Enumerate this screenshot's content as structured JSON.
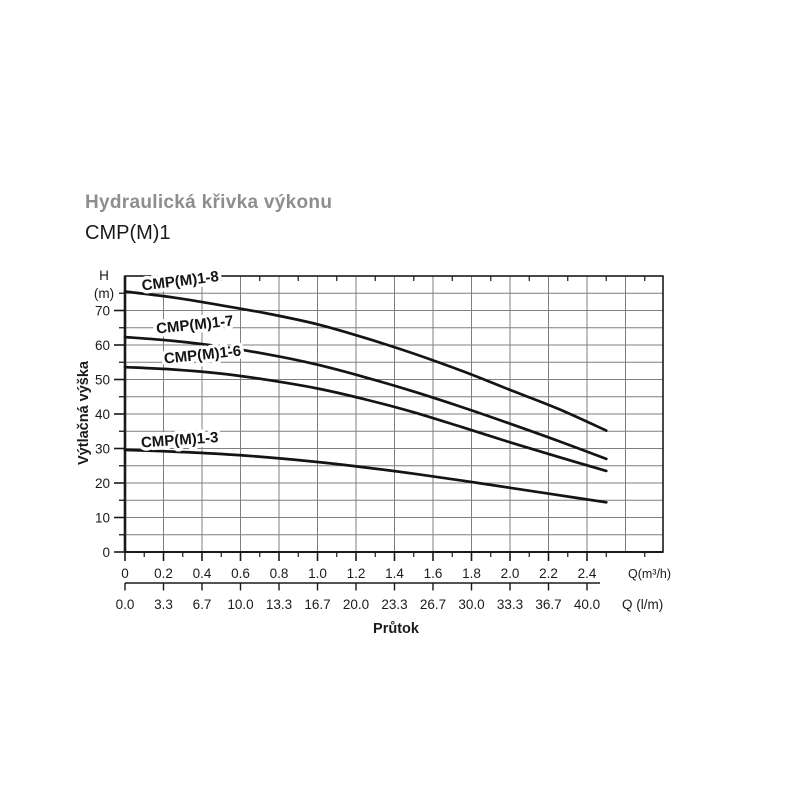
{
  "header": {
    "title": "Hydraulická křivka výkonu",
    "model": "CMP(M)1"
  },
  "chart_data": {
    "type": "line",
    "title": "Hydraulická křivka výkonu",
    "subtitle": "CMP(M)1",
    "xlabel": "Průtok",
    "ylabel": "Výtlačná výška",
    "y_unit_lines": [
      "H",
      "(m)"
    ],
    "x_unit_primary": "Q(m³/h)",
    "x_unit_secondary": "Q (l/m)",
    "xlim": [
      0,
      2.8
    ],
    "ylim": [
      0,
      80
    ],
    "grid": true,
    "x_grid_step": 0.2,
    "y_grid_step": 5,
    "y_ticks": [
      0,
      10,
      20,
      30,
      40,
      50,
      60,
      70
    ],
    "x_ticks_m3h": [
      "0",
      "0.2",
      "0.4",
      "0.6",
      "0.8",
      "1.0",
      "1.2",
      "1.4",
      "1.6",
      "1.8",
      "2.0",
      "2.2",
      "2.4"
    ],
    "x_ticks_m3h_values": [
      0,
      0.2,
      0.4,
      0.6,
      0.8,
      1.0,
      1.2,
      1.4,
      1.6,
      1.8,
      2.0,
      2.2,
      2.4
    ],
    "x_ticks_lm": [
      "0.0",
      "3.3",
      "6.7",
      "10.0",
      "13.3",
      "16.7",
      "20.0",
      "23.3",
      "26.7",
      "30.0",
      "33.3",
      "36.7",
      "40.0"
    ],
    "series": [
      {
        "name": "CMP(M)1-8",
        "points": [
          [
            0,
            75.5
          ],
          [
            0.25,
            73.8
          ],
          [
            0.5,
            71.5
          ],
          [
            0.75,
            69.0
          ],
          [
            1.0,
            66.0
          ],
          [
            1.25,
            62.0
          ],
          [
            1.5,
            57.5
          ],
          [
            1.75,
            52.5
          ],
          [
            2.0,
            47.0
          ],
          [
            2.25,
            41.5
          ],
          [
            2.5,
            35.2
          ]
        ],
        "label_q": 0.09,
        "label_h": 75.8,
        "label_rot": -7
      },
      {
        "name": "CMP(M)1-7",
        "points": [
          [
            0,
            62.3
          ],
          [
            0.25,
            61.2
          ],
          [
            0.5,
            59.5
          ],
          [
            0.75,
            57.2
          ],
          [
            1.0,
            54.3
          ],
          [
            1.25,
            50.6
          ],
          [
            1.5,
            46.5
          ],
          [
            1.75,
            42.0
          ],
          [
            2.0,
            37.2
          ],
          [
            2.25,
            32.2
          ],
          [
            2.5,
            27.0
          ]
        ],
        "label_q": 0.165,
        "label_h": 63.3,
        "label_rot": -6
      },
      {
        "name": "CMP(M)1-6",
        "points": [
          [
            0,
            53.6
          ],
          [
            0.25,
            52.9
          ],
          [
            0.5,
            51.7
          ],
          [
            0.75,
            49.8
          ],
          [
            1.0,
            47.4
          ],
          [
            1.25,
            44.2
          ],
          [
            1.5,
            40.5
          ],
          [
            1.75,
            36.2
          ],
          [
            2.0,
            31.8
          ],
          [
            2.25,
            27.6
          ],
          [
            2.5,
            23.5
          ]
        ],
        "label_q": 0.205,
        "label_h": 54.6,
        "label_rot": -6
      },
      {
        "name": "CMP(M)1-3",
        "points": [
          [
            0,
            29.6
          ],
          [
            0.25,
            29.1
          ],
          [
            0.5,
            28.4
          ],
          [
            0.75,
            27.4
          ],
          [
            1.0,
            26.1
          ],
          [
            1.25,
            24.5
          ],
          [
            1.5,
            22.7
          ],
          [
            1.75,
            20.7
          ],
          [
            2.0,
            18.6
          ],
          [
            2.25,
            16.5
          ],
          [
            2.5,
            14.4
          ]
        ],
        "label_q": 0.085,
        "label_h": 30.3,
        "label_rot": -4
      }
    ],
    "colors": {
      "curve": "#141414",
      "grid": "#7f7f7f",
      "axis": "#1a1a1a",
      "text": "#1b1b1b",
      "title_gray": "#8e8e8e",
      "background": "#ffffff"
    }
  }
}
